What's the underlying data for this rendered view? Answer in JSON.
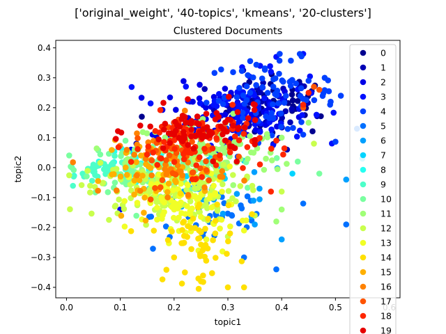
{
  "chart_data": {
    "type": "scatter",
    "suptitle": "['original_weight', '40-topics', 'kmeans', '20-clusters']",
    "title": "Clustered Documents",
    "xlabel": "topic1",
    "ylabel": "topic2",
    "xlim": [
      -0.02,
      0.62
    ],
    "ylim": [
      -0.435,
      0.425
    ],
    "xticks": [
      0.0,
      0.1,
      0.2,
      0.3,
      0.4,
      0.5,
      0.6
    ],
    "xtick_labels": [
      "0.0",
      "0.1",
      "0.2",
      "0.3",
      "0.4",
      "0.5",
      "0.6"
    ],
    "yticks": [
      -0.4,
      -0.3,
      -0.2,
      -0.1,
      0.0,
      0.1,
      0.2,
      0.3,
      0.4
    ],
    "ytick_labels": [
      "−0.4",
      "−0.3",
      "−0.2",
      "−0.1",
      "0.0",
      "0.1",
      "0.2",
      "0.3",
      "0.4"
    ],
    "legend_position": "right, inside plot",
    "grid": false,
    "series": [
      {
        "name": "0",
        "color": "#00008f",
        "center": [
          0.4,
          0.21
        ],
        "spread": [
          0.05,
          0.05
        ],
        "n": 40,
        "points": [
          [
            0.42,
            0.26
          ],
          [
            0.44,
            0.23
          ],
          [
            0.37,
            0.15
          ],
          [
            0.35,
            0.12
          ],
          [
            0.23,
            0.14
          ],
          [
            0.14,
            0.17
          ]
        ]
      },
      {
        "name": "1",
        "color": "#0000b5",
        "center": [
          0.36,
          0.2
        ],
        "spread": [
          0.05,
          0.05
        ],
        "n": 45,
        "points": [
          [
            0.4,
            0.18
          ],
          [
            0.31,
            0.19
          ],
          [
            0.2,
            0.13
          ],
          [
            0.13,
            0.08
          ],
          [
            0.41,
            0.06
          ]
        ]
      },
      {
        "name": "2",
        "color": "#0000e6",
        "center": [
          0.3,
          0.18
        ],
        "spread": [
          0.07,
          0.05
        ],
        "n": 70,
        "points": [
          [
            0.16,
            0.11
          ],
          [
            0.12,
            0.06
          ],
          [
            0.1,
            -0.14
          ],
          [
            0.28,
            0.05
          ],
          [
            0.38,
            0.11
          ]
        ]
      },
      {
        "name": "3",
        "color": "#0010ff",
        "center": [
          0.33,
          0.2
        ],
        "spread": [
          0.06,
          0.06
        ],
        "n": 90,
        "points": [
          [
            0.36,
            0.34
          ],
          [
            0.38,
            0.32
          ],
          [
            0.44,
            0.38
          ],
          [
            0.39,
            0.37
          ],
          [
            0.3,
            0.23
          ]
        ]
      },
      {
        "name": "4",
        "color": "#0040ff",
        "center": [
          0.38,
          0.24
        ],
        "spread": [
          0.06,
          0.06
        ],
        "n": 80,
        "points": [
          [
            0.45,
            0.29
          ],
          [
            0.48,
            0.3
          ],
          [
            0.51,
            0.24
          ],
          [
            0.49,
            0.21
          ],
          [
            0.44,
            0.11
          ]
        ]
      },
      {
        "name": "5",
        "color": "#0070ff",
        "center": [
          0.28,
          -0.16
        ],
        "spread": [
          0.06,
          0.06
        ],
        "n": 35,
        "points": [
          [
            0.52,
            -0.19
          ],
          [
            0.39,
            -0.34
          ],
          [
            0.33,
            -0.3
          ],
          [
            0.54,
            0.13
          ],
          [
            0.44,
            -0.12
          ]
        ]
      },
      {
        "name": "6",
        "color": "#00a0ff",
        "center": [
          0.28,
          -0.08
        ],
        "spread": [
          0.07,
          0.05
        ],
        "n": 25,
        "points": [
          [
            0.52,
            -0.04
          ],
          [
            0.4,
            -0.24
          ],
          [
            0.35,
            -0.19
          ]
        ]
      },
      {
        "name": "7",
        "color": "#00d4ff",
        "center": [
          0.22,
          -0.01
        ],
        "spread": [
          0.07,
          0.04
        ],
        "n": 20,
        "points": [
          [
            0.55,
            0.03
          ],
          [
            0.42,
            -0.02
          ]
        ]
      },
      {
        "name": "8",
        "color": "#26fff1",
        "center": [
          0.12,
          0.0
        ],
        "spread": [
          0.04,
          0.03
        ],
        "n": 20,
        "points": [
          [
            0.06,
            0.02
          ],
          [
            0.08,
            -0.01
          ]
        ]
      },
      {
        "name": "9",
        "color": "#4dffc9",
        "center": [
          0.08,
          -0.01
        ],
        "spread": [
          0.03,
          0.02
        ],
        "n": 40,
        "points": [
          [
            0.01,
            0.0
          ],
          [
            0.03,
            -0.02
          ],
          [
            0.05,
            0.01
          ]
        ]
      },
      {
        "name": "10",
        "color": "#7affa0",
        "center": [
          0.17,
          0.0
        ],
        "spread": [
          0.07,
          0.04
        ],
        "n": 120,
        "points": [
          [
            0.09,
            -0.05
          ],
          [
            0.04,
            -0.01
          ],
          [
            0.47,
            -0.02
          ],
          [
            0.43,
            0.02
          ]
        ]
      },
      {
        "name": "11",
        "color": "#a0ff77",
        "center": [
          0.26,
          0.05
        ],
        "spread": [
          0.07,
          0.06
        ],
        "n": 120,
        "points": [
          [
            0.31,
            0.18
          ],
          [
            0.4,
            0.1
          ],
          [
            0.45,
            0.15
          ],
          [
            0.39,
            -0.18
          ],
          [
            0.4,
            -0.14
          ]
        ]
      },
      {
        "name": "12",
        "color": "#c9ff4d",
        "center": [
          0.18,
          -0.08
        ],
        "spread": [
          0.07,
          0.05
        ],
        "n": 150,
        "points": [
          [
            0.09,
            -0.13
          ],
          [
            0.35,
            -0.16
          ],
          [
            0.3,
            -0.23
          ],
          [
            0.4,
            -0.08
          ],
          [
            0.46,
            0.08
          ]
        ]
      },
      {
        "name": "13",
        "color": "#f1ff26",
        "center": [
          0.22,
          -0.12
        ],
        "spread": [
          0.05,
          0.06
        ],
        "n": 90,
        "points": [
          [
            0.26,
            -0.24
          ],
          [
            0.29,
            -0.28
          ],
          [
            0.33,
            -0.21
          ]
        ]
      },
      {
        "name": "14",
        "color": "#ffe000",
        "center": [
          0.24,
          -0.24
        ],
        "spread": [
          0.04,
          0.07
        ],
        "n": 55,
        "points": [
          [
            0.3,
            -0.4
          ],
          [
            0.33,
            -0.4
          ],
          [
            0.25,
            -0.38
          ],
          [
            0.22,
            -0.35
          ],
          [
            0.2,
            -0.3
          ]
        ]
      },
      {
        "name": "15",
        "color": "#ffb000",
        "center": [
          0.17,
          -0.02
        ],
        "spread": [
          0.05,
          0.05
        ],
        "n": 55,
        "points": [
          [
            0.11,
            0.0
          ],
          [
            0.13,
            -0.03
          ],
          [
            0.22,
            0.04
          ]
        ]
      },
      {
        "name": "16",
        "color": "#ff8200",
        "center": [
          0.2,
          0.01
        ],
        "spread": [
          0.05,
          0.05
        ],
        "n": 45,
        "points": [
          [
            0.22,
            0.19
          ],
          [
            0.17,
            0.05
          ]
        ]
      },
      {
        "name": "17",
        "color": "#ff5400",
        "center": [
          0.22,
          0.04
        ],
        "spread": [
          0.05,
          0.05
        ],
        "n": 45,
        "points": [
          [
            0.46,
            0.27
          ],
          [
            0.47,
            0.26
          ],
          [
            0.44,
            0.2
          ]
        ]
      },
      {
        "name": "18",
        "color": "#ff2600",
        "center": [
          0.24,
          0.08
        ],
        "spread": [
          0.06,
          0.05
        ],
        "n": 90,
        "points": [
          [
            0.31,
            0.15
          ],
          [
            0.39,
            0.09
          ],
          [
            0.38,
            -0.08
          ],
          [
            0.45,
            0.25
          ],
          [
            0.44,
            0.21
          ]
        ]
      },
      {
        "name": "19",
        "color": "#e60000",
        "center": [
          0.25,
          0.12
        ],
        "spread": [
          0.06,
          0.04
        ],
        "n": 80,
        "points": [
          [
            0.26,
            0.18
          ],
          [
            0.3,
            0.16
          ],
          [
            0.35,
            0.21
          ],
          [
            0.2,
            0.11
          ]
        ]
      }
    ]
  }
}
